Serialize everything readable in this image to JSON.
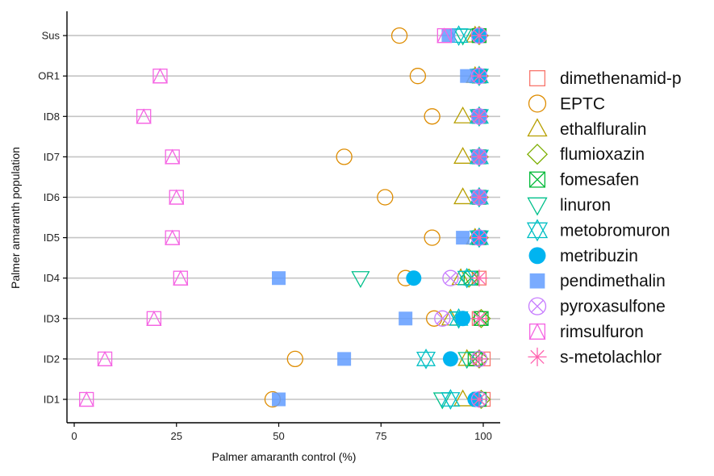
{
  "chart_data": {
    "type": "scatter",
    "title": "",
    "xlabel": "Palmer amaranth control (%)",
    "ylabel": "Palmer amaranth population",
    "xlim": [
      -2,
      104
    ],
    "xticks": [
      0,
      25,
      50,
      75,
      100
    ],
    "xtick_labels": [
      "0",
      "25",
      "50",
      "75",
      "100"
    ],
    "populations": [
      "ID1",
      "ID2",
      "ID3",
      "ID4",
      "ID5",
      "ID6",
      "ID7",
      "ID8",
      "OR1",
      "Sus"
    ],
    "grid": "horizontal lines at each population",
    "legend_position": "right",
    "series": [
      {
        "name": "dimethenamid-p",
        "shape": "square-open",
        "color": "#F8766D",
        "values": {
          "ID1": 100,
          "ID2": 100,
          "ID3": 99,
          "ID4": 99,
          "ID5": 99,
          "ID6": 99,
          "ID7": 99,
          "ID8": 99,
          "OR1": 99,
          "Sus": 99
        }
      },
      {
        "name": "EPTC",
        "shape": "circle-open",
        "color": "#DE8C00",
        "values": {
          "ID1": 48.5,
          "ID2": 54,
          "ID3": 88,
          "ID4": 81,
          "ID5": 87.5,
          "ID6": 76,
          "ID7": 66,
          "ID8": 87.5,
          "OR1": 84,
          "Sus": 79.5
        }
      },
      {
        "name": "ethalfluralin",
        "shape": "triangle-open",
        "color": "#B79F00",
        "values": {
          "ID1": 95,
          "ID2": 96,
          "ID3": 92,
          "ID4": 94.5,
          "ID5": 98,
          "ID6": 95,
          "ID7": 95,
          "ID8": 95,
          "OR1": 98,
          "Sus": 98
        }
      },
      {
        "name": "flumioxazin",
        "shape": "diamond-open",
        "color": "#7CAE00",
        "values": {
          "ID1": 99.5,
          "ID2": 99,
          "ID3": 99.5,
          "ID4": 96.5,
          "ID5": 99,
          "ID6": 99,
          "ID7": 99,
          "ID8": 99,
          "OR1": 99,
          "Sus": 99
        }
      },
      {
        "name": "fomesafen",
        "shape": "square-x",
        "color": "#00BA38",
        "values": {
          "ID1": 99,
          "ID2": 98,
          "ID3": 99.5,
          "ID4": 97,
          "ID5": 99,
          "ID6": 99,
          "ID7": 99,
          "ID8": 99,
          "OR1": 99,
          "Sus": 99
        }
      },
      {
        "name": "linuron",
        "shape": "triangle-down-open",
        "color": "#00C08B",
        "values": {
          "ID1": 90,
          "ID2": 96,
          "ID3": 94,
          "ID4": 70,
          "ID5": 99,
          "ID6": 99,
          "ID7": 99,
          "ID8": 99,
          "OR1": 99,
          "Sus": 95
        }
      },
      {
        "name": "metobromuron",
        "shape": "star-of-david",
        "color": "#00BFC4",
        "values": {
          "ID1": 92,
          "ID2": 86,
          "ID3": 94,
          "ID4": 96,
          "ID5": 99,
          "ID6": 99,
          "ID7": 99,
          "ID8": 99,
          "OR1": 99,
          "Sus": 94
        }
      },
      {
        "name": "metribuzin",
        "shape": "circle-filled",
        "color": "#00B4F0",
        "values": {
          "ID1": 98,
          "ID2": 92,
          "ID3": 95,
          "ID4": 83,
          "ID5": 99,
          "ID6": 99,
          "ID7": 99,
          "ID8": 99,
          "OR1": 99,
          "Sus": 99
        }
      },
      {
        "name": "pendimethalin",
        "shape": "square-filled",
        "color": "#619CFF",
        "values": {
          "ID1": 50,
          "ID2": 66,
          "ID3": 81,
          "ID4": 50,
          "ID5": 95,
          "ID6": 99,
          "ID7": 99,
          "ID8": 99,
          "OR1": 96,
          "Sus": 91.5
        }
      },
      {
        "name": "pyroxasulfone",
        "shape": "circle-x",
        "color": "#C77CFF",
        "values": {
          "ID1": 99,
          "ID2": 99,
          "ID3": 90,
          "ID4": 92,
          "ID5": 99,
          "ID6": 99,
          "ID7": 99,
          "ID8": 99,
          "OR1": 99,
          "Sus": 99
        }
      },
      {
        "name": "rimsulfuron",
        "shape": "triangle-in-square",
        "color": "#F564E3",
        "values": {
          "ID1": 3,
          "ID2": 7.5,
          "ID3": 19.5,
          "ID4": 26,
          "ID5": 24,
          "ID6": 25,
          "ID7": 24,
          "ID8": 17,
          "OR1": 21,
          "Sus": 90.5
        }
      },
      {
        "name": "s-metolachlor",
        "shape": "asterisk",
        "color": "#FF64B0",
        "values": {
          "ID1": 99,
          "ID2": 99,
          "ID3": 99,
          "ID4": 99,
          "ID5": 99,
          "ID6": 99,
          "ID7": 99,
          "ID8": 99,
          "OR1": 99,
          "Sus": 99
        }
      }
    ]
  }
}
